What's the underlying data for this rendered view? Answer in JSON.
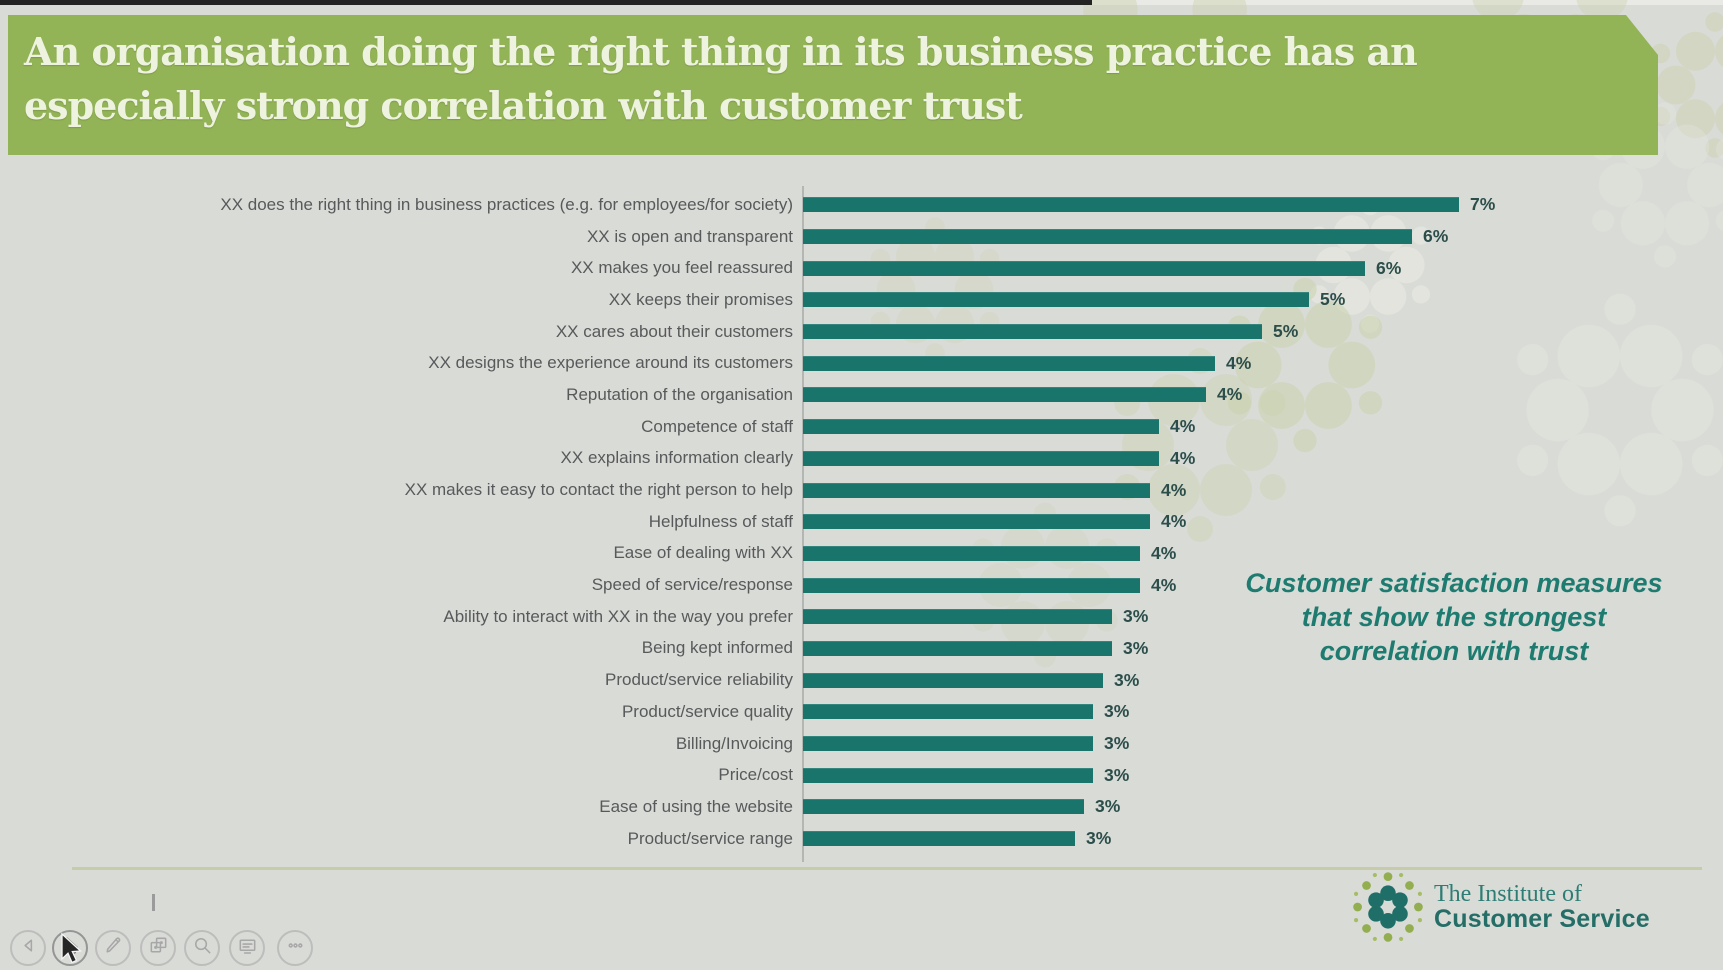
{
  "slide": {
    "title_line1": "An organisation doing the right thing in its business practice has an",
    "title_line2": "especially strong correlation with customer trust",
    "annotation": {
      "line1": "Customer satisfaction measures",
      "line2": "that show the strongest",
      "line3": "correlation with trust"
    },
    "logo": {
      "line1": "The Institute of",
      "line2": "Customer Service"
    }
  },
  "chart_data": {
    "type": "bar",
    "orientation": "horizontal",
    "title": "An organisation doing the right thing in its business practice has an especially strong correlation with customer trust",
    "categories": [
      "XX does the right thing in business practices (e.g. for employees/for society)",
      "XX is open and transparent",
      "XX makes you feel reassured",
      "XX keeps their promises",
      "XX cares about their customers",
      "XX designs the experience around its customers",
      "Reputation of the organisation",
      "Competence of staff",
      "XX explains information clearly",
      "XX makes it easy to contact the right person to help",
      "Helpfulness of staff",
      "Ease of dealing with XX",
      "Speed of service/response",
      "Ability to interact with XX in the way you prefer",
      "Being kept informed",
      "Product/service reliability",
      "Product/service quality",
      "Billing/Invoicing",
      "Price/cost",
      "Ease of using the website",
      "Product/service range"
    ],
    "values": [
      7.0,
      6.5,
      6.0,
      5.4,
      4.9,
      4.4,
      4.3,
      3.8,
      3.8,
      3.7,
      3.7,
      3.6,
      3.6,
      3.3,
      3.3,
      3.2,
      3.1,
      3.1,
      3.1,
      3.0,
      2.9
    ],
    "value_labels": [
      "7%",
      "6%",
      "6%",
      "5%",
      "5%",
      "4%",
      "4%",
      "4%",
      "4%",
      "4%",
      "4%",
      "4%",
      "4%",
      "3%",
      "3%",
      "3%",
      "3%",
      "3%",
      "3%",
      "3%",
      "3%"
    ],
    "xlim": [
      0,
      7.0
    ],
    "gridlines": false,
    "legend": false,
    "bar_color": "#19756c",
    "annotation": "Customer satisfaction measures that show the strongest correlation with trust"
  },
  "toolbar": {
    "buttons": [
      {
        "name": "previous-slide-button",
        "icon": "arrow-left-icon"
      },
      {
        "name": "pointer-tools-button",
        "icon": "cursor-icon",
        "active": true
      },
      {
        "name": "pen-tools-button",
        "icon": "pen-icon"
      },
      {
        "name": "see-all-slides-button",
        "icon": "slides-icon"
      },
      {
        "name": "zoom-slide-button",
        "icon": "magnifier-icon"
      },
      {
        "name": "display-settings-button",
        "icon": "monitor-icon"
      },
      {
        "name": "more-options-button",
        "icon": "ellipsis-icon"
      }
    ]
  },
  "colors": {
    "banner_green": "#93b357",
    "bar_teal": "#19756c",
    "annotation_teal": "#1e7b70",
    "category_label_grey": "#58595b",
    "value_label_dark": "#2c4e4a",
    "background_grey": "#d9dbd7",
    "logo_teal": "#2e7d74",
    "logo_green": "#93ae4f",
    "footer_line_olive": "#c6cba9"
  }
}
